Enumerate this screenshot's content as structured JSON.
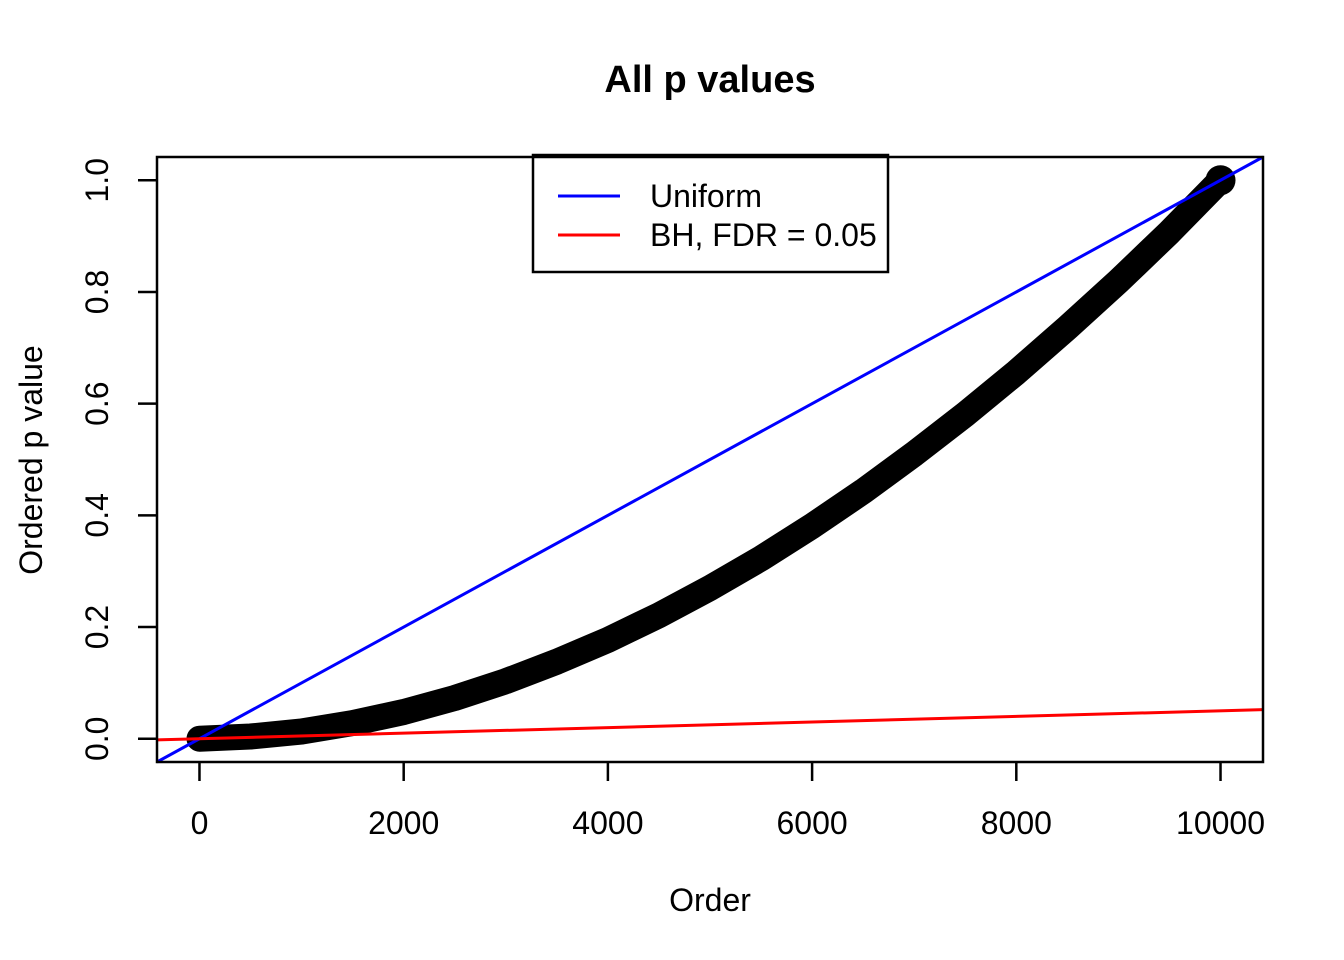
{
  "chart_data": {
    "type": "scatter",
    "title": "All p values",
    "xlabel": "Order",
    "ylabel": "Ordered p value",
    "xlim": [
      -416,
      10416
    ],
    "ylim": [
      -0.0416,
      1.0416
    ],
    "grid": false,
    "x_ticks": {
      "values": [
        0,
        2000,
        4000,
        6000,
        8000,
        10000
      ],
      "labels": [
        "0",
        "2000",
        "4000",
        "6000",
        "8000",
        "10000"
      ]
    },
    "y_ticks": {
      "values": [
        0.0,
        0.2,
        0.4,
        0.6,
        0.8,
        1.0
      ],
      "labels": [
        "0.0",
        "0.2",
        "0.4",
        "0.6",
        "0.8",
        "1.0"
      ]
    },
    "series": [
      {
        "name": "ordered_p_values",
        "type": "thick-point-curve",
        "color": "#000000",
        "x": [
          0,
          500,
          1000,
          1500,
          2000,
          2500,
          3000,
          3500,
          4000,
          4500,
          5000,
          5500,
          6000,
          6500,
          7000,
          7500,
          8000,
          8500,
          9000,
          9500,
          10000
        ],
        "y": [
          0.0002,
          0.004,
          0.013,
          0.028,
          0.048,
          0.073,
          0.103,
          0.138,
          0.177,
          0.221,
          0.27,
          0.323,
          0.381,
          0.443,
          0.51,
          0.581,
          0.656,
          0.736,
          0.819,
          0.907,
          1.0
        ]
      }
    ],
    "ablines": [
      {
        "name": "uniform_line",
        "color": "#0000FF",
        "intercept": 0,
        "slope": 0.0001
      },
      {
        "name": "bh_fdr_line",
        "color": "#FF0000",
        "intercept": 0,
        "slope": 5e-06
      }
    ],
    "legend": {
      "position": "top-center-inside",
      "entries": [
        {
          "label": "Uniform",
          "color": "#0000FF"
        },
        {
          "label": "BH, FDR = 0.05",
          "color": "#FF0000"
        }
      ]
    },
    "colors": {
      "foreground": "#000000",
      "background": "#FFFFFF",
      "uniform_line": "#0000FF",
      "bh_line": "#FF0000"
    }
  }
}
